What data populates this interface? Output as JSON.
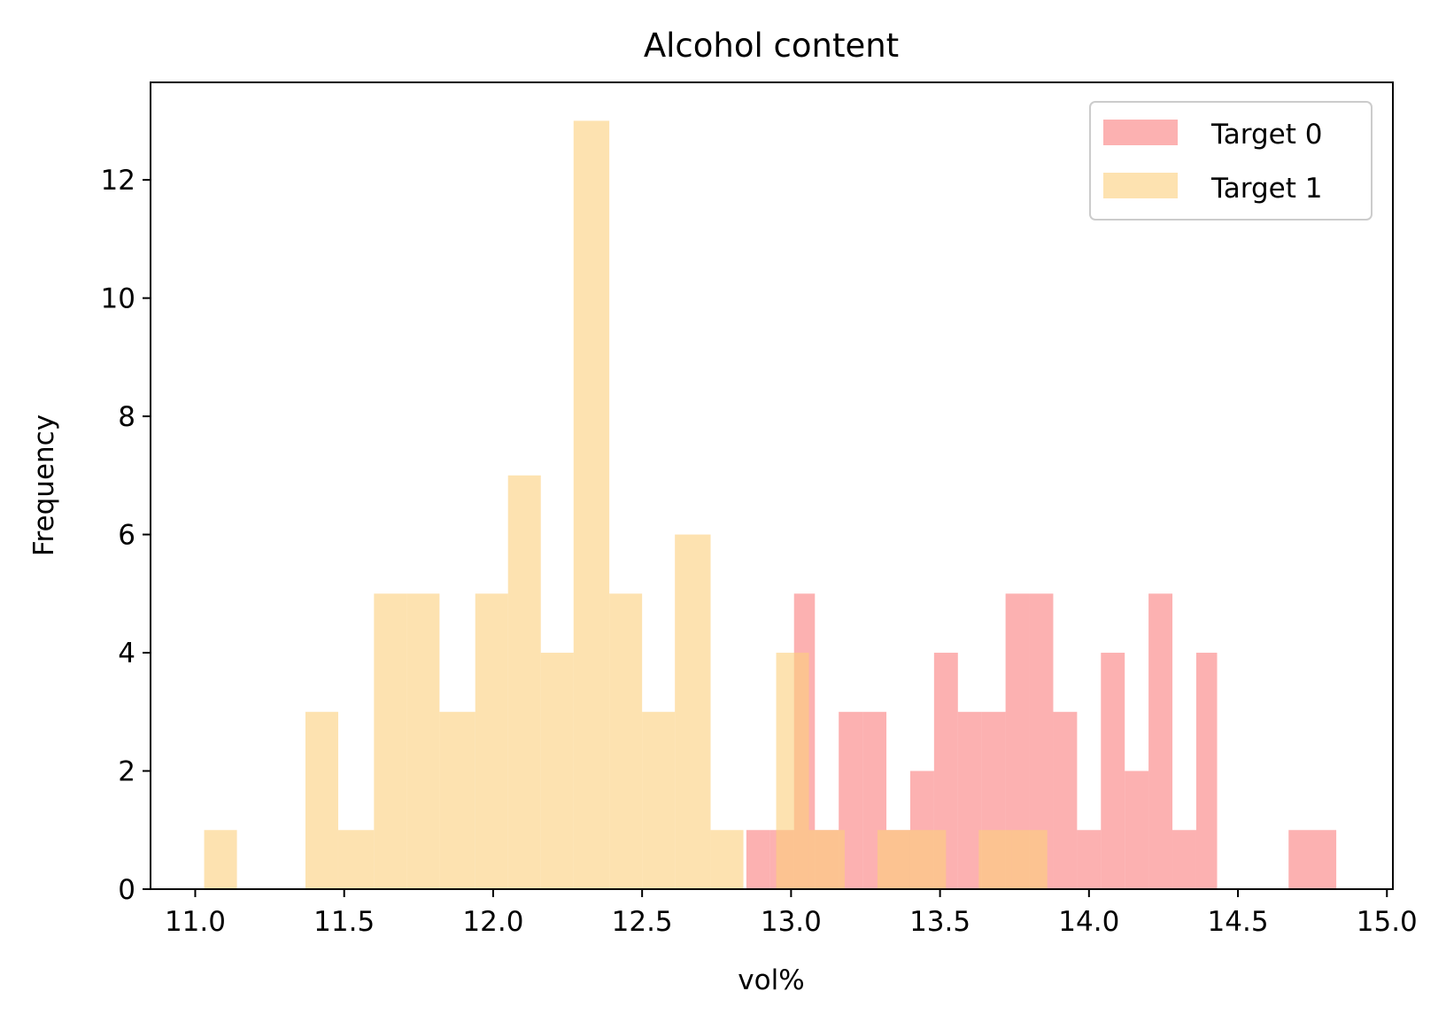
{
  "chart_data": {
    "type": "bar",
    "title": "Alcohol content",
    "xlabel": "vol%",
    "ylabel": "Frequency",
    "xlim": [
      10.85,
      15.02
    ],
    "ylim": [
      0,
      13.65
    ],
    "xticks": [
      "11.0",
      "11.5",
      "12.0",
      "12.5",
      "13.0",
      "13.5",
      "14.0",
      "14.5",
      "15.0"
    ],
    "yticks": [
      "0",
      "2",
      "4",
      "6",
      "8",
      "10",
      "12"
    ],
    "legend_position": "top-right",
    "series": [
      {
        "name": "Target 0",
        "color": "#fa7d7d",
        "opacity": 0.6,
        "bins": [
          [
            12.85,
            12.93,
            1
          ],
          [
            12.93,
            13.01,
            1
          ],
          [
            13.01,
            13.08,
            5
          ],
          [
            13.08,
            13.16,
            1
          ],
          [
            13.16,
            13.24,
            3
          ],
          [
            13.24,
            13.32,
            3
          ],
          [
            13.32,
            13.4,
            1
          ],
          [
            13.4,
            13.48,
            2
          ],
          [
            13.48,
            13.56,
            4
          ],
          [
            13.56,
            13.64,
            3
          ],
          [
            13.64,
            13.72,
            3
          ],
          [
            13.72,
            13.8,
            5
          ],
          [
            13.8,
            13.88,
            5
          ],
          [
            13.88,
            13.96,
            3
          ],
          [
            13.96,
            14.04,
            1
          ],
          [
            14.04,
            14.12,
            4
          ],
          [
            14.12,
            14.2,
            2
          ],
          [
            14.2,
            14.28,
            5
          ],
          [
            14.28,
            14.36,
            1
          ],
          [
            14.36,
            14.43,
            4
          ],
          [
            14.67,
            14.83,
            1
          ]
        ]
      },
      {
        "name": "Target 1",
        "color": "#fccf7c",
        "opacity": 0.6,
        "bins": [
          [
            11.03,
            11.14,
            1
          ],
          [
            11.37,
            11.48,
            3
          ],
          [
            11.48,
            11.6,
            1
          ],
          [
            11.6,
            11.71,
            5
          ],
          [
            11.71,
            11.82,
            5
          ],
          [
            11.82,
            11.94,
            3
          ],
          [
            11.94,
            12.05,
            5
          ],
          [
            12.05,
            12.16,
            7
          ],
          [
            12.16,
            12.27,
            4
          ],
          [
            12.27,
            12.39,
            13
          ],
          [
            12.39,
            12.5,
            5
          ],
          [
            12.5,
            12.61,
            3
          ],
          [
            12.61,
            12.73,
            6
          ],
          [
            12.73,
            12.84,
            1
          ],
          [
            12.95,
            13.06,
            4
          ],
          [
            13.06,
            13.18,
            1
          ],
          [
            13.29,
            13.4,
            1
          ],
          [
            13.4,
            13.52,
            1
          ],
          [
            13.63,
            13.74,
            1
          ],
          [
            13.74,
            13.86,
            1
          ]
        ]
      }
    ]
  }
}
